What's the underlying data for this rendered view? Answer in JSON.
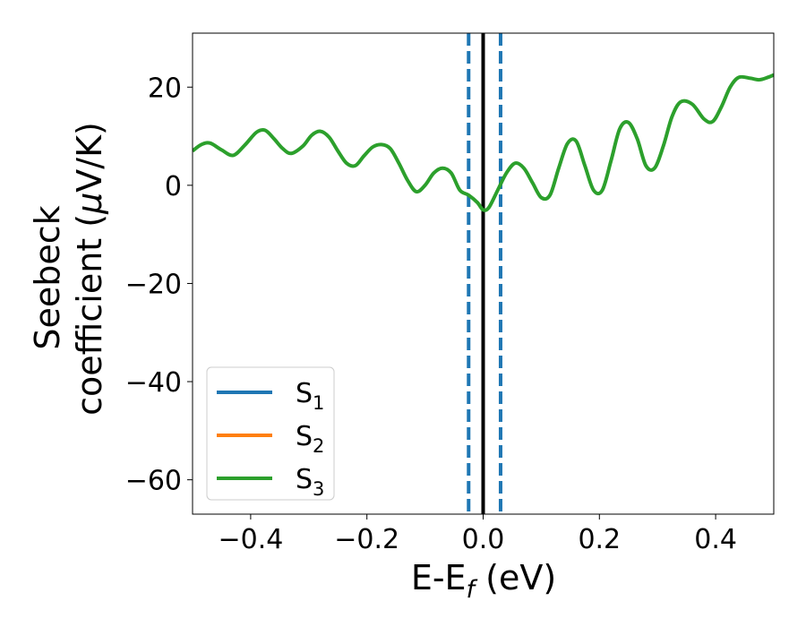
{
  "chart_data": {
    "type": "line",
    "title": "",
    "xlabel_main": "E-E",
    "xlabel_sub": "f",
    "xlabel_tail": " (eV)",
    "ylabel_line1": "Seebeck",
    "ylabel_line2_pre": "coefficient  (",
    "ylabel_line2_mu": "μ",
    "ylabel_line2_post": "V/K)",
    "xlim": [
      -0.5,
      0.5
    ],
    "ylim": [
      -67,
      31
    ],
    "xticks": [
      -0.4,
      -0.2,
      0.0,
      0.2,
      0.4
    ],
    "xtick_labels": [
      "−0.4",
      "−0.2",
      "0.0",
      "0.2",
      "0.4"
    ],
    "yticks": [
      20,
      0,
      -20,
      -40,
      -60
    ],
    "ytick_labels": [
      "20",
      "0",
      "−20",
      "−40",
      "−60"
    ],
    "grid": false,
    "legend_position": "lower-left",
    "series": [
      {
        "name": "S",
        "sub": "1",
        "color": "#1f77b4"
      },
      {
        "name": "S",
        "sub": "2",
        "color": "#ff7f0e"
      },
      {
        "name": "S",
        "sub": "3",
        "color": "#2ca02c",
        "x": [
          -0.5,
          -0.485,
          -0.47,
          -0.45,
          -0.43,
          -0.41,
          -0.39,
          -0.375,
          -0.36,
          -0.345,
          -0.33,
          -0.31,
          -0.295,
          -0.28,
          -0.265,
          -0.25,
          -0.235,
          -0.22,
          -0.205,
          -0.19,
          -0.175,
          -0.16,
          -0.145,
          -0.13,
          -0.115,
          -0.1,
          -0.085,
          -0.07,
          -0.055,
          -0.04,
          -0.025,
          -0.01,
          0.0,
          0.01,
          0.025,
          0.04,
          0.055,
          0.07,
          0.085,
          0.1,
          0.115,
          0.13,
          0.145,
          0.16,
          0.175,
          0.19,
          0.205,
          0.22,
          0.235,
          0.25,
          0.265,
          0.28,
          0.295,
          0.31,
          0.325,
          0.34,
          0.36,
          0.38,
          0.395,
          0.41,
          0.425,
          0.44,
          0.46,
          0.475,
          0.49,
          0.5
        ],
        "y": [
          7,
          8.3,
          8.6,
          7.2,
          6.1,
          8.2,
          10.8,
          11.2,
          9.5,
          7.5,
          6.5,
          8.0,
          10.2,
          11.0,
          9.8,
          7.0,
          4.5,
          4.0,
          6.0,
          7.8,
          8.3,
          7.5,
          4.5,
          1.0,
          -1.3,
          0.0,
          2.5,
          3.5,
          2.5,
          -1.0,
          -2.0,
          -3.5,
          -5.0,
          -4.5,
          -1.0,
          2.5,
          4.5,
          3.5,
          0.5,
          -2.5,
          -2.0,
          3.5,
          8.5,
          9.0,
          4.0,
          -1.0,
          -1.0,
          5.0,
          11.5,
          12.8,
          9.5,
          4.0,
          3.5,
          8.0,
          14.0,
          17.0,
          16.5,
          13.5,
          13.0,
          16.0,
          20.0,
          22.0,
          21.8,
          21.5,
          22.0,
          22.5
        ]
      }
    ],
    "vlines": [
      {
        "x": 0.0,
        "color": "#000000",
        "style": "solid"
      },
      {
        "x": -0.025,
        "color": "#1f77b4",
        "style": "dashed"
      },
      {
        "x": 0.03,
        "color": "#1f77b4",
        "style": "dashed"
      }
    ]
  }
}
